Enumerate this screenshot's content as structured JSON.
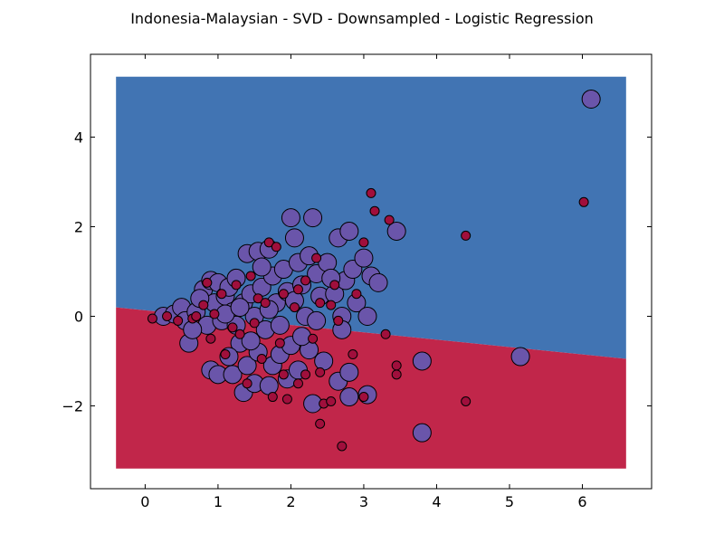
{
  "chart_data": {
    "type": "scatter",
    "title": "Indonesia-Malaysian - SVD - Downsampled - Logistic Regression",
    "xlabel": "",
    "ylabel": "",
    "xlim": [
      -0.75,
      6.95
    ],
    "ylim": [
      -3.85,
      5.85
    ],
    "x_ticks": [
      0,
      1,
      2,
      3,
      4,
      5,
      6
    ],
    "y_ticks": [
      -2,
      0,
      2,
      4
    ],
    "x_tick_labels": [
      "0",
      "1",
      "2",
      "3",
      "4",
      "5",
      "6"
    ],
    "y_tick_labels": [
      "−2",
      "0",
      "2",
      "4"
    ],
    "grid": false,
    "legend": "none",
    "decision_regions": {
      "x_range": [
        -0.4,
        6.6
      ],
      "y_range": [
        -3.4,
        5.35
      ],
      "boundary": [
        [
          -0.4,
          0.2
        ],
        [
          6.6,
          -0.95
        ]
      ],
      "upper_color": "#4174b3",
      "lower_color": "#c1264a"
    },
    "series": [
      {
        "marker_color": "#6a55aa",
        "marker_size": "large",
        "points": [
          [
            0.25,
            0.0
          ],
          [
            0.4,
            0.05
          ],
          [
            0.5,
            0.2
          ],
          [
            0.55,
            -0.1
          ],
          [
            0.6,
            -0.6
          ],
          [
            0.7,
            0.1
          ],
          [
            0.8,
            0.6
          ],
          [
            0.85,
            -0.2
          ],
          [
            0.9,
            0.8
          ],
          [
            0.95,
            0.3
          ],
          [
            1.0,
            0.75
          ],
          [
            1.05,
            -0.1
          ],
          [
            1.1,
            0.45
          ],
          [
            1.15,
            0.65
          ],
          [
            1.2,
            0.1
          ],
          [
            1.25,
            0.85
          ],
          [
            1.3,
            -0.6
          ],
          [
            1.35,
            0.3
          ],
          [
            1.4,
            1.4
          ],
          [
            1.45,
            0.5
          ],
          [
            1.5,
            0.0
          ],
          [
            1.55,
            1.45
          ],
          [
            1.6,
            0.65
          ],
          [
            1.65,
            -0.3
          ],
          [
            1.7,
            1.5
          ],
          [
            1.75,
            0.9
          ],
          [
            1.8,
            0.3
          ],
          [
            1.85,
            -0.2
          ],
          [
            1.9,
            1.05
          ],
          [
            1.95,
            0.55
          ],
          [
            2.0,
            2.2
          ],
          [
            2.05,
            1.75
          ],
          [
            2.1,
            1.2
          ],
          [
            2.15,
            0.7
          ],
          [
            2.2,
            0.0
          ],
          [
            2.25,
            1.35
          ],
          [
            2.3,
            2.2
          ],
          [
            2.35,
            0.95
          ],
          [
            2.4,
            0.45
          ],
          [
            2.5,
            1.2
          ],
          [
            2.6,
            0.5
          ],
          [
            2.65,
            1.75
          ],
          [
            2.7,
            0.0
          ],
          [
            2.75,
            0.8
          ],
          [
            2.8,
            1.9
          ],
          [
            2.85,
            1.05
          ],
          [
            2.9,
            0.3
          ],
          [
            3.0,
            1.3
          ],
          [
            3.05,
            0.0
          ],
          [
            3.1,
            0.9
          ],
          [
            3.2,
            0.75
          ],
          [
            3.45,
            1.9
          ],
          [
            0.9,
            -1.2
          ],
          [
            1.0,
            -1.3
          ],
          [
            1.15,
            -0.9
          ],
          [
            1.2,
            -1.3
          ],
          [
            1.35,
            -1.7
          ],
          [
            1.4,
            -1.1
          ],
          [
            1.5,
            -1.5
          ],
          [
            1.55,
            -0.8
          ],
          [
            1.7,
            -1.55
          ],
          [
            1.75,
            -1.1
          ],
          [
            1.85,
            -0.85
          ],
          [
            1.95,
            -1.4
          ],
          [
            2.1,
            -1.2
          ],
          [
            2.25,
            -0.75
          ],
          [
            2.3,
            -1.95
          ],
          [
            2.35,
            -0.1
          ],
          [
            2.45,
            -1.0
          ],
          [
            2.65,
            -1.45
          ],
          [
            2.7,
            -0.3
          ],
          [
            2.8,
            -1.25
          ],
          [
            2.8,
            -1.8
          ],
          [
            3.05,
            -1.75
          ],
          [
            3.8,
            -1.0
          ],
          [
            3.8,
            -2.6
          ],
          [
            5.15,
            -0.9
          ],
          [
            6.12,
            4.85
          ],
          [
            0.65,
            -0.3
          ],
          [
            1.25,
            -0.2
          ],
          [
            1.45,
            -0.55
          ],
          [
            2.0,
            -0.65
          ],
          [
            2.15,
            -0.45
          ],
          [
            1.1,
            0.05
          ],
          [
            1.7,
            0.15
          ],
          [
            0.75,
            0.4
          ],
          [
            2.55,
            0.85
          ],
          [
            2.05,
            0.35
          ],
          [
            1.6,
            1.1
          ],
          [
            1.3,
            0.2
          ]
        ]
      },
      {
        "marker_color": "#a00f3c",
        "marker_size": "small",
        "points": [
          [
            0.1,
            -0.05
          ],
          [
            0.3,
            0.0
          ],
          [
            0.45,
            -0.1
          ],
          [
            0.65,
            -0.05
          ],
          [
            0.8,
            0.25
          ],
          [
            0.95,
            0.05
          ],
          [
            1.05,
            0.5
          ],
          [
            1.25,
            0.7
          ],
          [
            1.45,
            0.9
          ],
          [
            1.55,
            0.4
          ],
          [
            1.7,
            1.65
          ],
          [
            1.8,
            1.55
          ],
          [
            1.9,
            0.5
          ],
          [
            2.05,
            0.2
          ],
          [
            2.2,
            0.8
          ],
          [
            2.35,
            1.3
          ],
          [
            2.4,
            0.3
          ],
          [
            2.55,
            0.25
          ],
          [
            2.65,
            -0.1
          ],
          [
            2.9,
            0.5
          ],
          [
            3.0,
            1.65
          ],
          [
            3.1,
            2.75
          ],
          [
            3.15,
            2.35
          ],
          [
            3.35,
            2.15
          ],
          [
            3.3,
            -0.4
          ],
          [
            0.9,
            -0.5
          ],
          [
            1.1,
            -0.85
          ],
          [
            1.3,
            -0.4
          ],
          [
            1.5,
            -0.15
          ],
          [
            1.6,
            -0.95
          ],
          [
            1.75,
            -1.8
          ],
          [
            1.9,
            -1.3
          ],
          [
            1.95,
            -1.85
          ],
          [
            2.1,
            -1.5
          ],
          [
            2.2,
            -1.3
          ],
          [
            2.4,
            -1.25
          ],
          [
            2.45,
            -1.95
          ],
          [
            2.4,
            -2.4
          ],
          [
            2.55,
            -1.9
          ],
          [
            2.7,
            -2.9
          ],
          [
            2.85,
            -0.85
          ],
          [
            3.0,
            -1.8
          ],
          [
            3.45,
            -1.3
          ],
          [
            3.45,
            -1.1
          ],
          [
            4.4,
            -1.9
          ],
          [
            4.4,
            1.8
          ],
          [
            6.02,
            2.55
          ],
          [
            1.85,
            -0.6
          ],
          [
            2.3,
            -0.5
          ],
          [
            1.4,
            -1.5
          ],
          [
            0.7,
            0.0
          ],
          [
            1.65,
            0.3
          ],
          [
            2.1,
            0.6
          ],
          [
            1.2,
            -0.25
          ],
          [
            2.6,
            0.7
          ],
          [
            0.85,
            0.75
          ]
        ]
      }
    ]
  }
}
